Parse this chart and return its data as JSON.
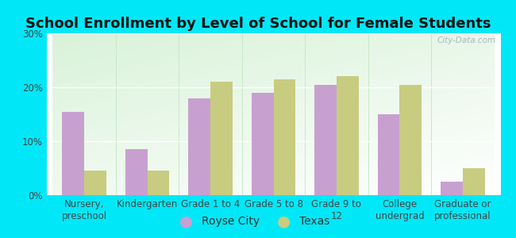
{
  "title": "School Enrollment by Level of School for Female Students",
  "categories": [
    "Nursery,\npreschool",
    "Kindergarten",
    "Grade 1 to 4",
    "Grade 5 to 8",
    "Grade 9 to\n12",
    "College\nundergrad",
    "Graduate or\nprofessional"
  ],
  "royse_city": [
    15.5,
    8.5,
    18.0,
    19.0,
    20.5,
    15.0,
    2.5
  ],
  "texas": [
    4.5,
    4.5,
    21.0,
    21.5,
    22.0,
    20.5,
    5.0
  ],
  "royse_color": "#c8a0d0",
  "texas_color": "#c8cc80",
  "background_outer": "#00e8f8",
  "ylim": [
    0,
    30
  ],
  "yticks": [
    0,
    10,
    20,
    30
  ],
  "ytick_labels": [
    "0%",
    "10%",
    "20%",
    "30%"
  ],
  "legend_labels": [
    "Royse City",
    "Texas"
  ],
  "bar_width": 0.35,
  "title_fontsize": 13,
  "tick_fontsize": 8.5,
  "legend_fontsize": 10,
  "watermark": "City-Data.com"
}
